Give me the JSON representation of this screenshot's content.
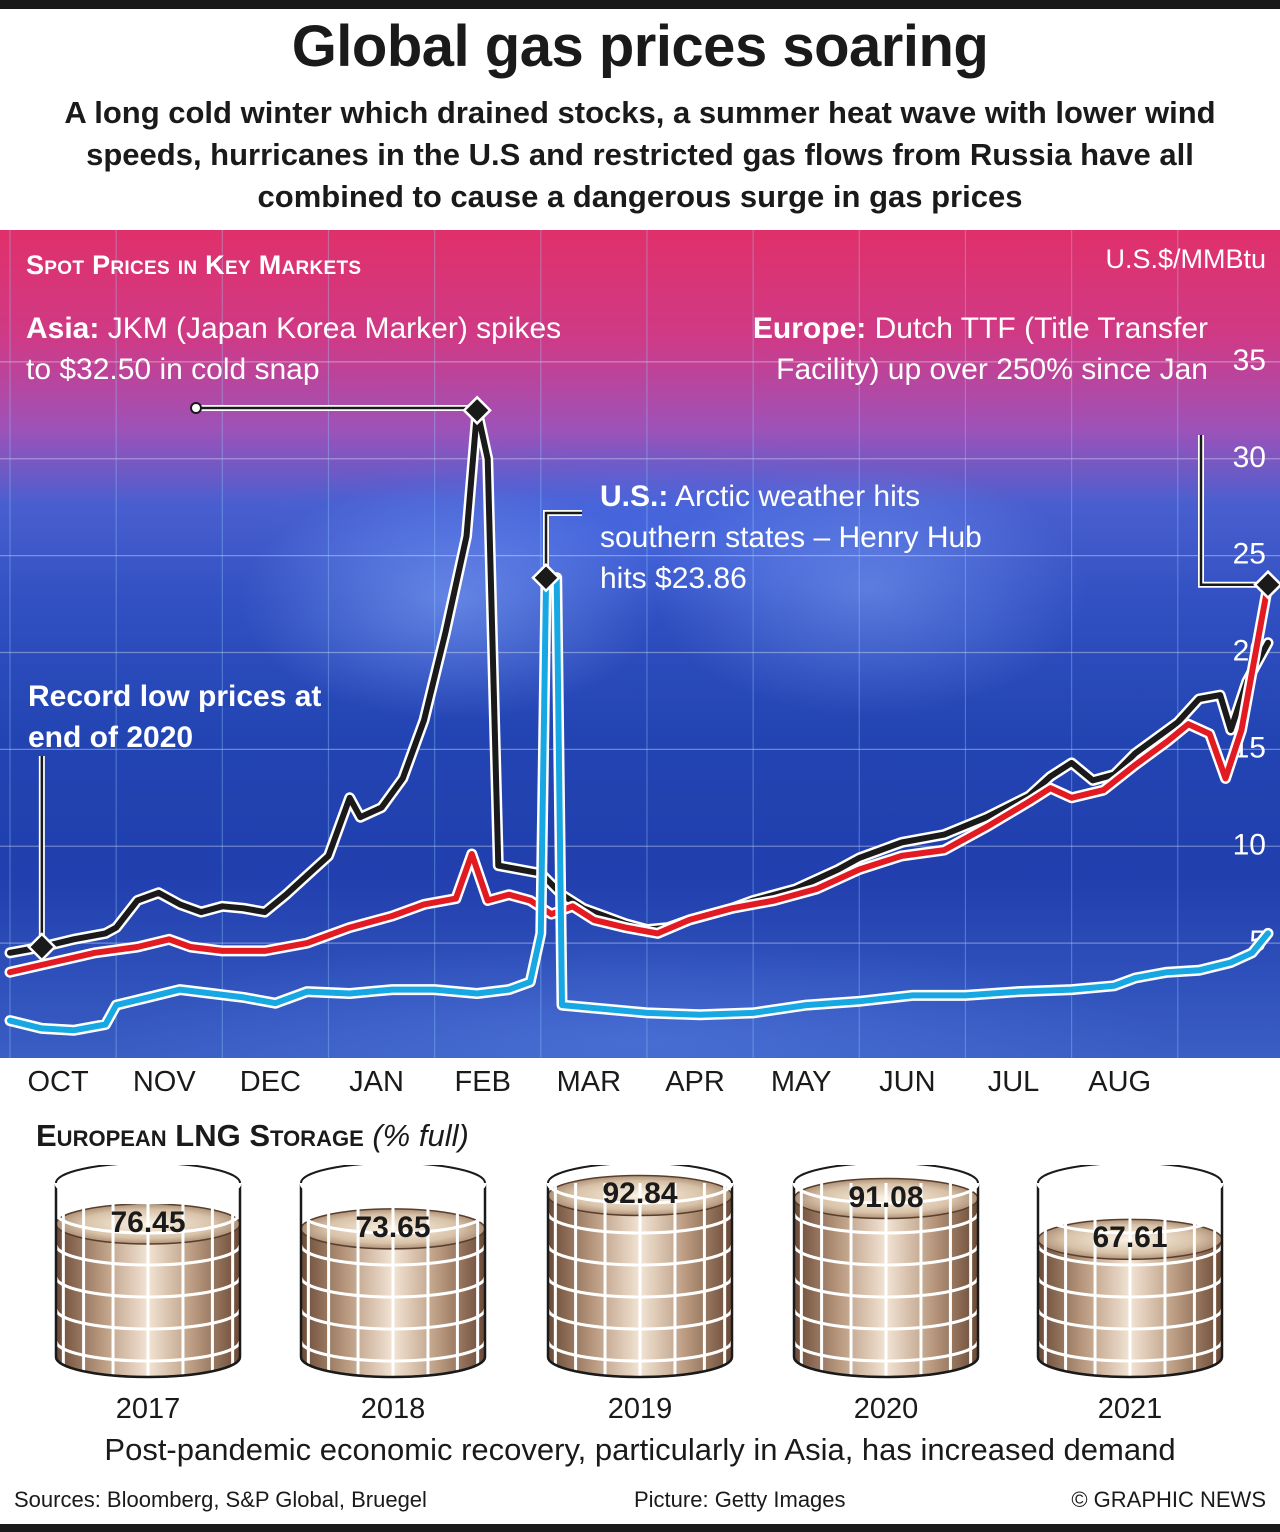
{
  "title": "Global gas prices soaring",
  "subtitle": "A long cold winter which drained stocks, a summer heat wave with lower wind speeds, hurricanes in the U.S and restricted gas flows from Russia have all combined to cause a dangerous surge in gas prices",
  "spot": {
    "heading": "Spot Prices in Key Markets",
    "unit": "U.S.$/MMBtu",
    "notes": {
      "asia_bold": "Asia:",
      "asia_text": " JKM (Japan Korea Marker) spikes to $32.50 in cold snap",
      "europe_bold": "Europe:",
      "europe_text": " Dutch TTF (Title Transfer Facility) up over 250% since Jan",
      "us_bold": "U.S.:",
      "us_text": " Arctic weather hits southern states – Henry Hub hits $23.86",
      "low": "Record low prices at end of 2020"
    }
  },
  "chart_data": {
    "type": "line",
    "title": "Spot Prices in Key Markets",
    "ylabel": "U.S.$/MMBtu",
    "ylim": [
      0,
      40
    ],
    "yticks": [
      5,
      10,
      15,
      20,
      25,
      30,
      35
    ],
    "ytick_labels": [
      "5",
      "10",
      "15",
      "20",
      "25",
      "30",
      "35"
    ],
    "months": [
      "OCT",
      "NOV",
      "DEC",
      "JAN",
      "FEB",
      "MAR",
      "APR",
      "MAY",
      "JUN",
      "JUL",
      "AUG"
    ],
    "x_range": [
      0,
      11.85
    ],
    "series": [
      {
        "name": "Asia JKM",
        "color": "#1a1a1a",
        "points": [
          [
            0,
            4.5
          ],
          [
            0.3,
            4.8
          ],
          [
            0.6,
            5.2
          ],
          [
            0.9,
            5.5
          ],
          [
            1.0,
            5.8
          ],
          [
            1.2,
            7.2
          ],
          [
            1.4,
            7.6
          ],
          [
            1.6,
            7.0
          ],
          [
            1.8,
            6.6
          ],
          [
            2.0,
            6.9
          ],
          [
            2.2,
            6.8
          ],
          [
            2.4,
            6.6
          ],
          [
            2.6,
            7.5
          ],
          [
            2.8,
            8.5
          ],
          [
            3.0,
            9.5
          ],
          [
            3.2,
            12.5
          ],
          [
            3.3,
            11.5
          ],
          [
            3.5,
            12.0
          ],
          [
            3.7,
            13.5
          ],
          [
            3.9,
            16.5
          ],
          [
            4.1,
            21.0
          ],
          [
            4.3,
            26.0
          ],
          [
            4.4,
            32.5
          ],
          [
            4.5,
            30.0
          ],
          [
            4.6,
            9.0
          ],
          [
            4.8,
            8.8
          ],
          [
            5.0,
            8.6
          ],
          [
            5.2,
            7.5
          ],
          [
            5.4,
            6.8
          ],
          [
            5.6,
            6.4
          ],
          [
            5.8,
            6.0
          ],
          [
            6.0,
            5.7
          ],
          [
            6.2,
            5.8
          ],
          [
            6.4,
            6.2
          ],
          [
            6.6,
            6.5
          ],
          [
            6.8,
            6.8
          ],
          [
            7.0,
            7.2
          ],
          [
            7.4,
            7.8
          ],
          [
            7.8,
            8.8
          ],
          [
            8.0,
            9.4
          ],
          [
            8.4,
            10.2
          ],
          [
            8.8,
            10.6
          ],
          [
            9.2,
            11.5
          ],
          [
            9.6,
            12.6
          ],
          [
            9.8,
            13.6
          ],
          [
            10.0,
            14.3
          ],
          [
            10.2,
            13.4
          ],
          [
            10.4,
            13.7
          ],
          [
            10.6,
            14.8
          ],
          [
            10.8,
            15.6
          ],
          [
            11.0,
            16.4
          ],
          [
            11.2,
            17.6
          ],
          [
            11.4,
            17.8
          ],
          [
            11.5,
            16.0
          ],
          [
            11.65,
            18.5
          ],
          [
            11.85,
            20.5
          ]
        ]
      },
      {
        "name": "Europe TTF",
        "color": "#e21b23",
        "points": [
          [
            0,
            3.5
          ],
          [
            0.4,
            4.0
          ],
          [
            0.8,
            4.5
          ],
          [
            1.2,
            4.8
          ],
          [
            1.5,
            5.2
          ],
          [
            1.7,
            4.8
          ],
          [
            2.0,
            4.6
          ],
          [
            2.4,
            4.6
          ],
          [
            2.8,
            5.0
          ],
          [
            3.2,
            5.8
          ],
          [
            3.6,
            6.4
          ],
          [
            3.9,
            7.0
          ],
          [
            4.2,
            7.3
          ],
          [
            4.35,
            9.6
          ],
          [
            4.5,
            7.2
          ],
          [
            4.7,
            7.5
          ],
          [
            4.9,
            7.2
          ],
          [
            5.1,
            6.5
          ],
          [
            5.3,
            6.9
          ],
          [
            5.5,
            6.2
          ],
          [
            5.8,
            5.8
          ],
          [
            6.1,
            5.5
          ],
          [
            6.4,
            6.2
          ],
          [
            6.8,
            6.8
          ],
          [
            7.2,
            7.2
          ],
          [
            7.6,
            7.8
          ],
          [
            8.0,
            8.8
          ],
          [
            8.4,
            9.5
          ],
          [
            8.8,
            9.8
          ],
          [
            9.2,
            11.0
          ],
          [
            9.6,
            12.3
          ],
          [
            9.8,
            13.0
          ],
          [
            10.0,
            12.5
          ],
          [
            10.3,
            12.9
          ],
          [
            10.6,
            14.2
          ],
          [
            10.9,
            15.4
          ],
          [
            11.1,
            16.3
          ],
          [
            11.3,
            15.8
          ],
          [
            11.45,
            13.5
          ],
          [
            11.6,
            16.0
          ],
          [
            11.85,
            23.5
          ]
        ]
      },
      {
        "name": "U.S. Henry Hub",
        "color": "#17a8e4",
        "points": [
          [
            0,
            1.0
          ],
          [
            0.3,
            0.6
          ],
          [
            0.6,
            0.5
          ],
          [
            0.9,
            0.8
          ],
          [
            1.0,
            1.8
          ],
          [
            1.3,
            2.2
          ],
          [
            1.6,
            2.6
          ],
          [
            1.9,
            2.4
          ],
          [
            2.2,
            2.2
          ],
          [
            2.5,
            1.9
          ],
          [
            2.8,
            2.5
          ],
          [
            3.2,
            2.4
          ],
          [
            3.6,
            2.6
          ],
          [
            4.0,
            2.6
          ],
          [
            4.4,
            2.4
          ],
          [
            4.7,
            2.6
          ],
          [
            4.9,
            3.0
          ],
          [
            5.0,
            5.5
          ],
          [
            5.05,
            23.86
          ],
          [
            5.15,
            23.86
          ],
          [
            5.2,
            1.8
          ],
          [
            5.6,
            1.6
          ],
          [
            6.0,
            1.4
          ],
          [
            6.5,
            1.3
          ],
          [
            7.0,
            1.4
          ],
          [
            7.5,
            1.8
          ],
          [
            8.0,
            2.0
          ],
          [
            8.5,
            2.3
          ],
          [
            9.0,
            2.3
          ],
          [
            9.5,
            2.5
          ],
          [
            10.0,
            2.6
          ],
          [
            10.4,
            2.8
          ],
          [
            10.6,
            3.2
          ],
          [
            10.9,
            3.5
          ],
          [
            11.2,
            3.6
          ],
          [
            11.5,
            4.0
          ],
          [
            11.7,
            4.5
          ],
          [
            11.85,
            5.5
          ]
        ]
      }
    ],
    "annotations": [
      {
        "label": "Asia: JKM (Japan Korea Marker) spikes to $32.50 in cold snap",
        "x": 4.4,
        "y": 32.5
      },
      {
        "label": "U.S.: Arctic weather hits southern states – Henry Hub hits $23.86",
        "x": 5.1,
        "y": 23.86
      },
      {
        "label": "Europe: Dutch TTF (Title Transfer Facility) up over 250% since Jan",
        "x": 11.85,
        "y": 23.5
      },
      {
        "label": "Record low prices at end of 2020",
        "x": 0.3,
        "y": 4.8
      }
    ]
  },
  "lng": {
    "heading": "European LNG Storage",
    "unit_note": " (% full)",
    "tanks": [
      {
        "year": "2017",
        "value": "76.45",
        "pct": 76.45
      },
      {
        "year": "2018",
        "value": "73.65",
        "pct": 73.65
      },
      {
        "year": "2019",
        "value": "92.84",
        "pct": 92.84
      },
      {
        "year": "2020",
        "value": "91.08",
        "pct": 91.08
      },
      {
        "year": "2021",
        "value": "67.61",
        "pct": 67.61
      }
    ]
  },
  "footnote": "Post-pandemic economic recovery, particularly in Asia, has increased demand",
  "credits": {
    "sources": "Sources: Bloomberg, S&P Global, Bruegel",
    "picture": "Picture: Getty Images",
    "copyright": "© GRAPHIC NEWS"
  }
}
